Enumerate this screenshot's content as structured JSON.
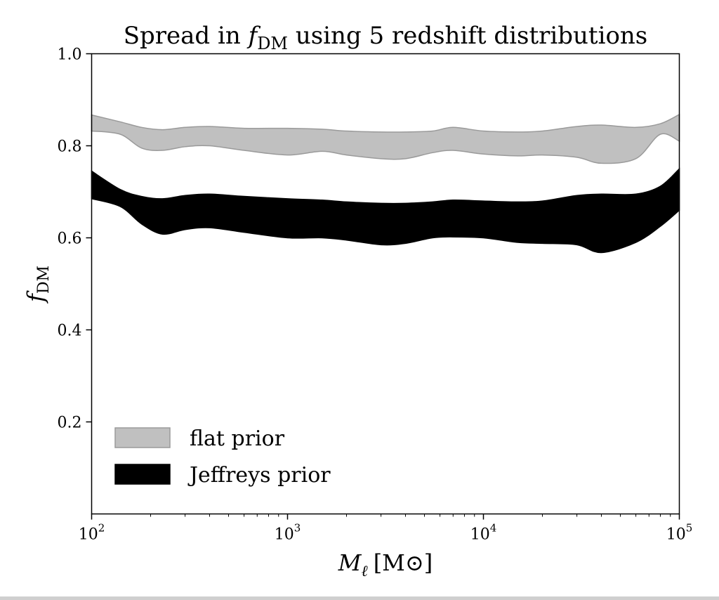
{
  "chart_data": {
    "type": "area",
    "title_prefix": "Spread in ",
    "title_math": "f",
    "title_sub": "DM",
    "title_suffix": " using 5 redshift distributions",
    "xlabel_math": "M",
    "xlabel_sub": "ℓ",
    "xlabel_unit": "[M⊙]",
    "ylabel_math": "f",
    "ylabel_sub": "DM",
    "xscale": "log",
    "xlim": [
      100,
      100000
    ],
    "ylim": [
      0.0,
      1.0
    ],
    "xticks": [
      {
        "base": "10",
        "exp": "2",
        "value": 100
      },
      {
        "base": "10",
        "exp": "3",
        "value": 1000
      },
      {
        "base": "10",
        "exp": "4",
        "value": 10000
      },
      {
        "base": "10",
        "exp": "5",
        "value": 100000
      }
    ],
    "yticks": [
      "0.2",
      "0.4",
      "0.6",
      "0.8",
      "1.0"
    ],
    "legend_position": "lower-left",
    "grid": false,
    "series": [
      {
        "name": "flat prior",
        "color": "#c0c0c0",
        "edge_color": "#9a9a9a",
        "x": [
          100,
          140,
          180,
          230,
          300,
          400,
          600,
          1000,
          1500,
          2000,
          3000,
          4000,
          5500,
          7000,
          10000,
          15000,
          20000,
          30000,
          40000,
          60000,
          80000,
          100000
        ],
        "upper": [
          0.867,
          0.852,
          0.84,
          0.835,
          0.84,
          0.842,
          0.838,
          0.838,
          0.836,
          0.832,
          0.83,
          0.83,
          0.832,
          0.84,
          0.832,
          0.83,
          0.832,
          0.842,
          0.845,
          0.84,
          0.848,
          0.868
        ],
        "lower": [
          0.832,
          0.825,
          0.795,
          0.79,
          0.798,
          0.8,
          0.79,
          0.78,
          0.788,
          0.78,
          0.772,
          0.772,
          0.785,
          0.79,
          0.782,
          0.778,
          0.78,
          0.775,
          0.762,
          0.772,
          0.825,
          0.81
        ]
      },
      {
        "name": "Jeffreys prior",
        "color": "#000000",
        "edge_color": "#000000",
        "x": [
          100,
          140,
          180,
          230,
          300,
          400,
          600,
          1000,
          1500,
          2000,
          3000,
          4000,
          5500,
          7000,
          10000,
          15000,
          20000,
          30000,
          40000,
          60000,
          80000,
          100000
        ],
        "upper": [
          0.745,
          0.705,
          0.69,
          0.685,
          0.692,
          0.695,
          0.69,
          0.685,
          0.682,
          0.678,
          0.675,
          0.675,
          0.678,
          0.682,
          0.68,
          0.678,
          0.68,
          0.692,
          0.695,
          0.695,
          0.712,
          0.75
        ],
        "lower": [
          0.685,
          0.668,
          0.63,
          0.608,
          0.618,
          0.622,
          0.612,
          0.6,
          0.6,
          0.595,
          0.585,
          0.588,
          0.6,
          0.602,
          0.6,
          0.59,
          0.588,
          0.585,
          0.568,
          0.59,
          0.625,
          0.66
        ]
      }
    ]
  }
}
